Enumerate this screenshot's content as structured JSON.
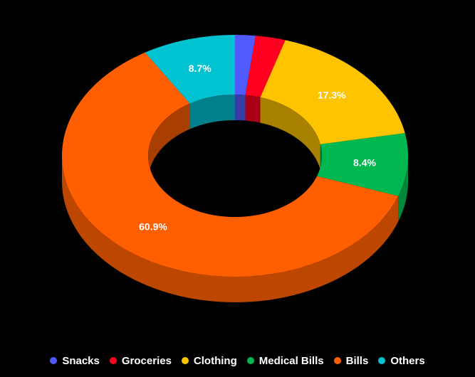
{
  "chart_data": {
    "type": "pie",
    "variant": "3d-donut",
    "title": "",
    "legend_position": "bottom",
    "categories": [
      "Snacks",
      "Groceries",
      "Clothing",
      "Medical Bills",
      "Bills",
      "Others"
    ],
    "values": [
      1.9,
      2.8,
      17.3,
      8.4,
      60.9,
      8.7
    ],
    "labels": [
      "",
      "",
      "17.3%",
      "8.4%",
      "60.9%",
      "8.7%"
    ],
    "colors": [
      "#4f5bff",
      "#ff0020",
      "#ffc400",
      "#00b84f",
      "#ff5f00",
      "#00c2d1"
    ]
  }
}
